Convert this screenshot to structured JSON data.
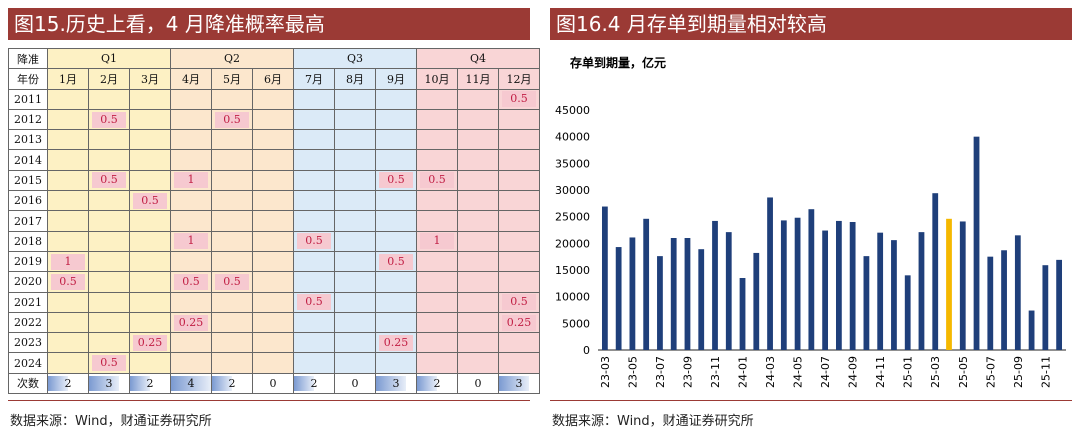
{
  "left_panel": {
    "title": "图15.历史上看，4 月降准概率最高",
    "source": "数据来源：Wind，财通证券研究所",
    "corner_top": "降准",
    "corner_bottom": "年份",
    "quarters": [
      "Q1",
      "Q2",
      "Q3",
      "Q4"
    ],
    "months": [
      "1月",
      "2月",
      "3月",
      "4月",
      "5月",
      "6月",
      "7月",
      "8月",
      "9月",
      "10月",
      "11月",
      "12月"
    ],
    "years": [
      "2011",
      "2012",
      "2013",
      "2014",
      "2015",
      "2016",
      "2017",
      "2018",
      "2019",
      "2020",
      "2021",
      "2022",
      "2023",
      "2024"
    ],
    "cells": [
      [
        "",
        "",
        "",
        "",
        "",
        "",
        "",
        "",
        "",
        "",
        "",
        "0.5"
      ],
      [
        "",
        "0.5",
        "",
        "",
        "0.5",
        "",
        "",
        "",
        "",
        "",
        "",
        ""
      ],
      [
        "",
        "",
        "",
        "",
        "",
        "",
        "",
        "",
        "",
        "",
        "",
        ""
      ],
      [
        "",
        "",
        "",
        "",
        "",
        "",
        "",
        "",
        "",
        "",
        "",
        ""
      ],
      [
        "",
        "0.5",
        "",
        "1",
        "",
        "",
        "",
        "",
        "0.5",
        "0.5",
        "",
        ""
      ],
      [
        "",
        "",
        "0.5",
        "",
        "",
        "",
        "",
        "",
        "",
        "",
        "",
        ""
      ],
      [
        "",
        "",
        "",
        "",
        "",
        "",
        "",
        "",
        "",
        "",
        "",
        ""
      ],
      [
        "",
        "",
        "",
        "1",
        "",
        "",
        "0.5",
        "",
        "",
        "1",
        "",
        ""
      ],
      [
        "1",
        "",
        "",
        "",
        "",
        "",
        "",
        "",
        "0.5",
        "",
        "",
        ""
      ],
      [
        "0.5",
        "",
        "",
        "0.5",
        "0.5",
        "",
        "",
        "",
        "",
        "",
        "",
        ""
      ],
      [
        "",
        "",
        "",
        "",
        "",
        "",
        "0.5",
        "",
        "",
        "",
        "",
        "0.5"
      ],
      [
        "",
        "",
        "",
        "0.25",
        "",
        "",
        "",
        "",
        "",
        "",
        "",
        "0.25"
      ],
      [
        "",
        "",
        "0.25",
        "",
        "",
        "",
        "",
        "",
        "0.25",
        "",
        "",
        ""
      ],
      [
        "",
        "0.5",
        "",
        "",
        "",
        "",
        "",
        "",
        "",
        "",
        "",
        ""
      ]
    ],
    "count_label": "次数",
    "counts": [
      "2",
      "3",
      "2",
      "4",
      "2",
      "0",
      "2",
      "0",
      "3",
      "2",
      "0",
      "3"
    ]
  },
  "right_panel": {
    "title": "图16.4 月存单到期量相对较高",
    "source": "数据来源：Wind，财通证券研究所",
    "chart_data": {
      "type": "bar",
      "ylabel": "存单到期量，亿元",
      "ylim": [
        0,
        45000
      ],
      "yticks": [
        "0",
        "5000",
        "10000",
        "15000",
        "20000",
        "25000",
        "30000",
        "35000",
        "40000",
        "45000"
      ],
      "xtick_labels": [
        "23-03",
        "23-05",
        "23-07",
        "23-09",
        "23-11",
        "24-01",
        "24-03",
        "24-05",
        "24-07",
        "24-09",
        "24-11",
        "25-01",
        "25-03",
        "25-05",
        "25-07",
        "25-09",
        "25-11"
      ],
      "categories": [
        "23-03",
        "23-04",
        "23-05",
        "23-06",
        "23-07",
        "23-08",
        "23-09",
        "23-10",
        "23-11",
        "23-12",
        "24-01",
        "24-02",
        "24-03",
        "24-04",
        "24-05",
        "24-06",
        "24-07",
        "24-08",
        "24-09",
        "24-10",
        "24-11",
        "24-12",
        "25-01",
        "25-02",
        "25-03",
        "25-04",
        "25-05",
        "25-06",
        "25-07",
        "25-08",
        "25-09",
        "25-10",
        "25-11",
        "25-12"
      ],
      "values": [
        26900,
        19300,
        21100,
        24600,
        17600,
        21000,
        21000,
        18900,
        24200,
        22100,
        13500,
        18200,
        28600,
        24300,
        24800,
        26400,
        22400,
        24200,
        24000,
        17600,
        22000,
        20600,
        14000,
        22100,
        29400,
        24600,
        24100,
        40000,
        17500,
        18700,
        21500,
        7400,
        15900,
        16900
      ],
      "highlight_index": 25,
      "colors": {
        "bar": "#1f3f7a",
        "highlight": "#f5b800"
      }
    }
  }
}
